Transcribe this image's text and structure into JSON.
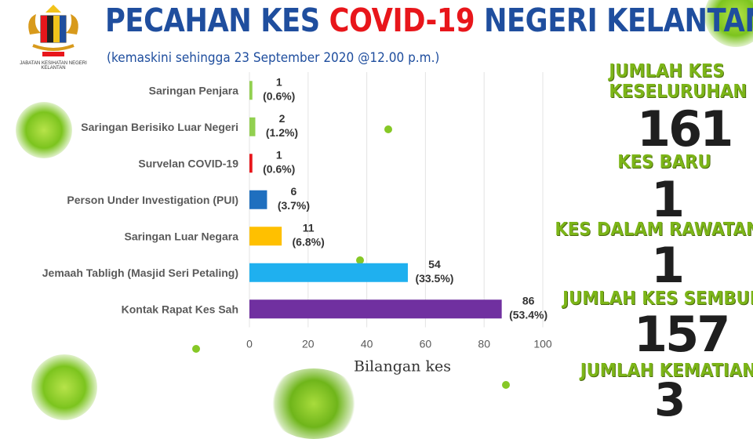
{
  "header": {
    "logo_caption": "JABATAN KESIHATAN NEGERI KELANTAN",
    "title_part1": "PECAHAN KES ",
    "title_highlight": "COVID-19",
    "title_part2": " NEGERI KELANTAN",
    "subtitle": "(kemaskini sehingga 23 September 2020 @12.00 p.m.)",
    "title_color": "#1f4e9e",
    "highlight_color": "#e8161b"
  },
  "stats": [
    {
      "label_lines": [
        "JUMLAH KES",
        "KESELURUHAN"
      ],
      "value": "161"
    },
    {
      "label_lines": [
        "KES BARU"
      ],
      "value": "1"
    },
    {
      "label_lines": [
        "KES DALAM RAWATAN"
      ],
      "value": "1"
    },
    {
      "label_lines": [
        "JUMLAH KES SEMBUH"
      ],
      "value": "157"
    },
    {
      "label_lines": [
        "JUMLAH KEMATIAN"
      ],
      "value": "3"
    }
  ],
  "chart_data": {
    "type": "bar",
    "orientation": "horizontal",
    "categories": [
      "Saringan Penjara",
      "Saringan Berisiko Luar Negeri",
      "Survelan COVID-19",
      "Person Under Investigation (PUI)",
      "Saringan Luar Negara",
      "Jemaah Tabligh (Masjid Seri Petaling)",
      "Kontak Rapat Kes Sah"
    ],
    "values": [
      1,
      2,
      1,
      6,
      11,
      54,
      86
    ],
    "value_labels": [
      "1",
      "2",
      "1",
      "6",
      "11",
      "54",
      "86"
    ],
    "percent_labels": [
      "(0.6%)",
      "(1.2%)",
      "(0.6%)",
      "(3.7%)",
      "(6.8%)",
      "(33.5%)",
      "(53.4%)"
    ],
    "colors": [
      "#92d050",
      "#92d050",
      "#e8161b",
      "#1f6fbf",
      "#ffc000",
      "#1fb0ef",
      "#7030a0"
    ],
    "xlabel": "Bilangan kes",
    "ylabel": "",
    "xlim": [
      0,
      100
    ],
    "xticks": [
      0,
      20,
      40,
      60,
      80,
      100
    ],
    "grid": true,
    "legend": "none"
  }
}
